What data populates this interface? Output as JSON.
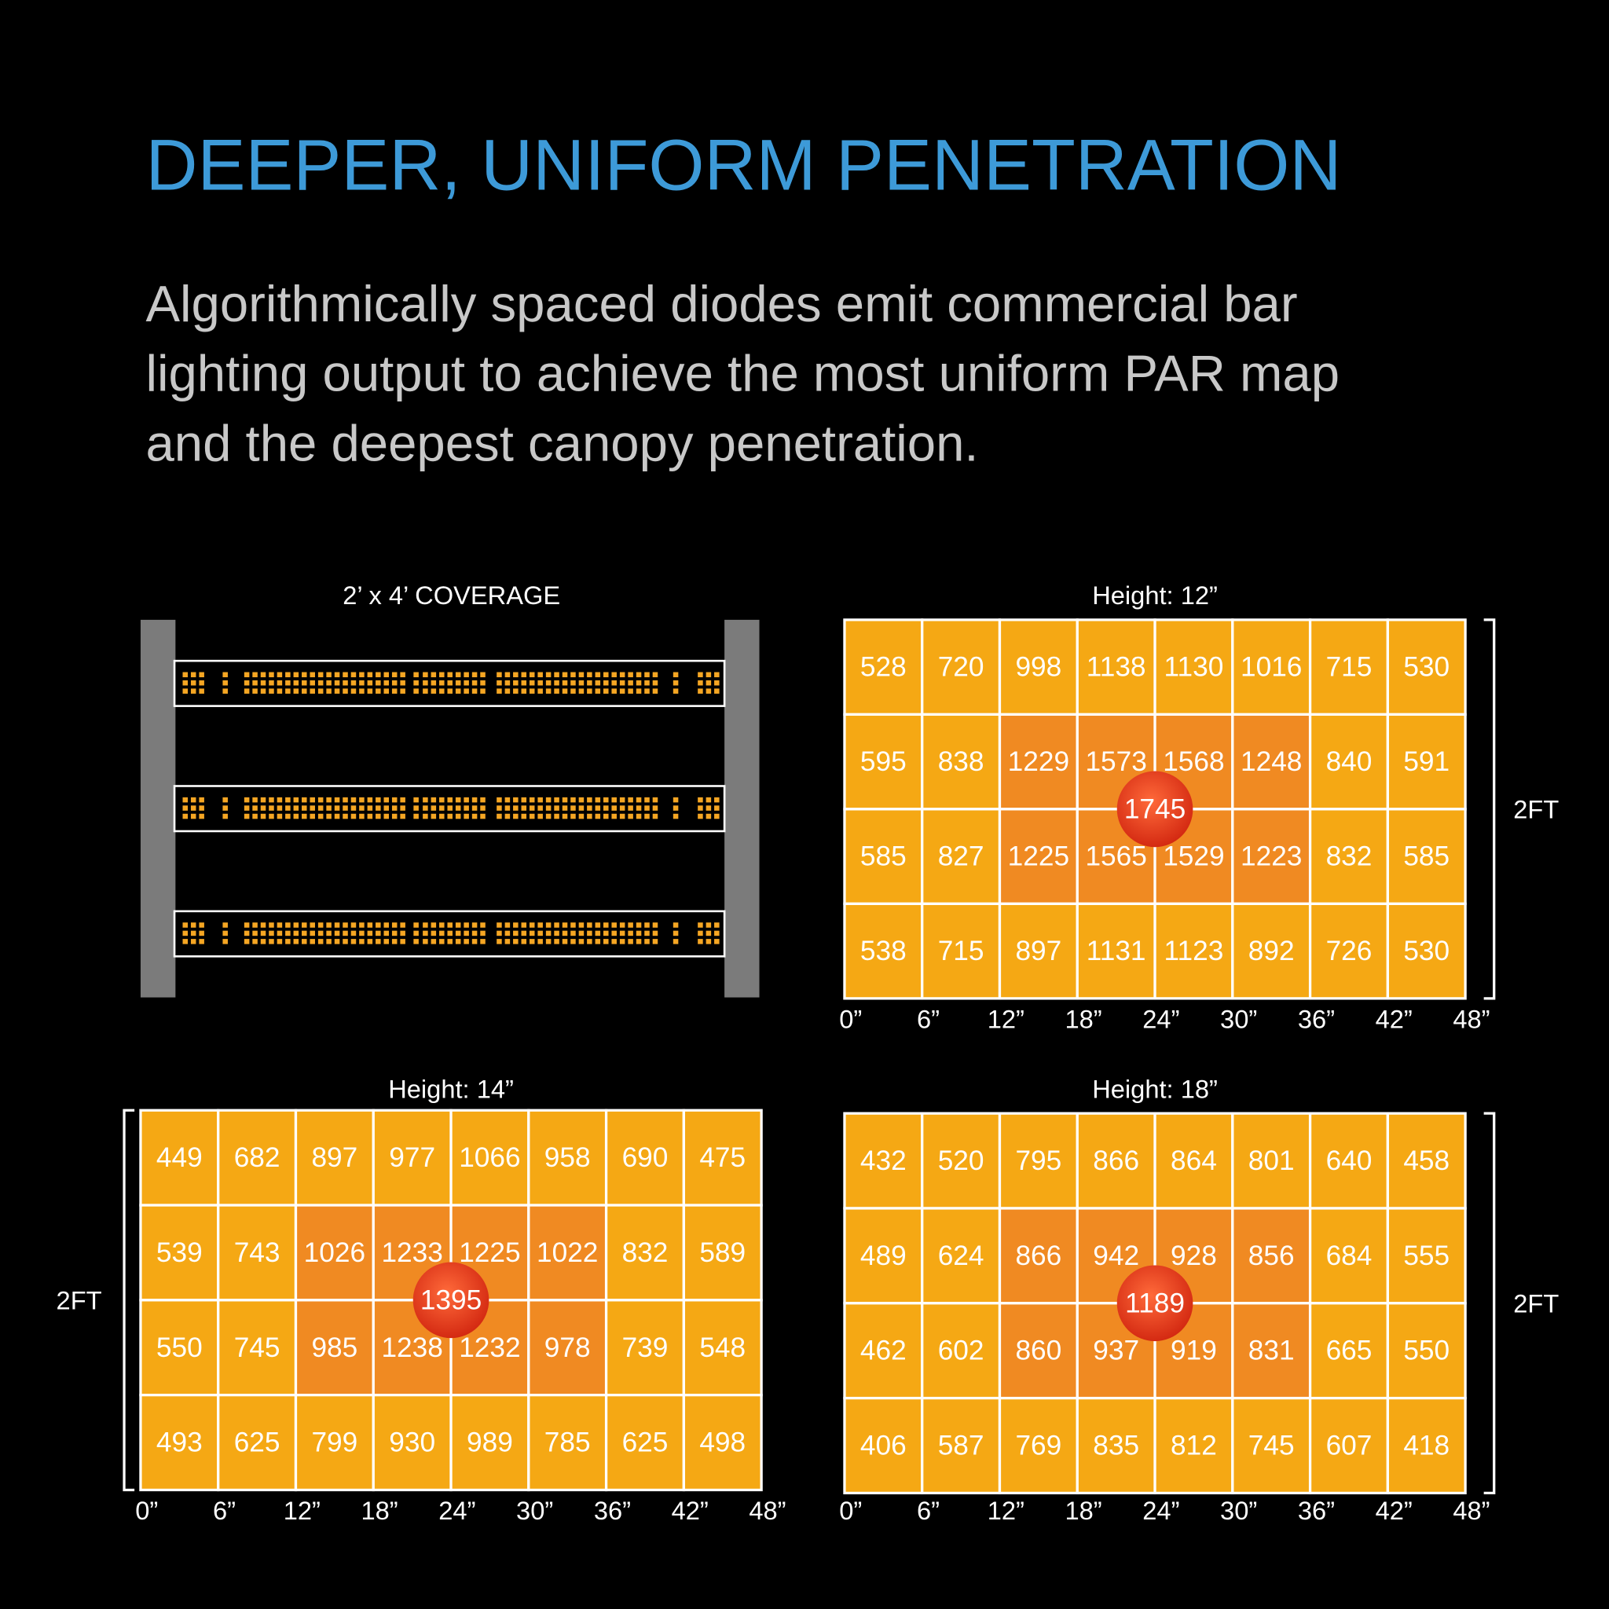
{
  "header": {
    "title": "DEEPER, UNIFORM PENETRATION",
    "description": [
      "Algorithmically spaced diodes emit commercial bar",
      "lighting output to achieve the most uniform PAR map",
      "and the deepest canopy penetration."
    ]
  },
  "coverage": {
    "title": "2’ x 4’ COVERAGE"
  },
  "maps": [
    {
      "title": "Height: 12”",
      "side_label": "2FT",
      "center": 1745,
      "rows": [
        [
          528,
          720,
          998,
          1138,
          1130,
          1016,
          715,
          530
        ],
        [
          595,
          838,
          1229,
          1573,
          1568,
          1248,
          840,
          591
        ],
        [
          585,
          827,
          1225,
          1565,
          1529,
          1223,
          832,
          585
        ],
        [
          538,
          715,
          897,
          1131,
          1123,
          892,
          726,
          530
        ]
      ],
      "x_labels": [
        "0”",
        "6”",
        "12”",
        "18”",
        "24”",
        "30”",
        "36”",
        "42”",
        "48”"
      ]
    },
    {
      "title": "Height: 14”",
      "side_label": "2FT",
      "center": 1395,
      "rows": [
        [
          449,
          682,
          897,
          977,
          1066,
          958,
          690,
          475
        ],
        [
          539,
          743,
          1026,
          1233,
          1225,
          1022,
          832,
          589
        ],
        [
          550,
          745,
          985,
          1238,
          1232,
          978,
          739,
          548
        ],
        [
          493,
          625,
          799,
          930,
          989,
          785,
          625,
          498
        ]
      ],
      "x_labels": [
        "0”",
        "6”",
        "12”",
        "18”",
        "24”",
        "30”",
        "36”",
        "42”",
        "48”"
      ]
    },
    {
      "title": "Height: 18”",
      "side_label": "2FT",
      "center": 1189,
      "rows": [
        [
          432,
          520,
          795,
          866,
          864,
          801,
          640,
          458
        ],
        [
          489,
          624,
          866,
          942,
          928,
          856,
          684,
          555
        ],
        [
          462,
          602,
          860,
          937,
          919,
          831,
          665,
          550
        ],
        [
          406,
          587,
          769,
          835,
          812,
          745,
          607,
          418
        ]
      ],
      "x_labels": [
        "0”",
        "6”",
        "12”",
        "18”",
        "24”",
        "30”",
        "36”",
        "42”",
        "48”"
      ]
    }
  ]
}
